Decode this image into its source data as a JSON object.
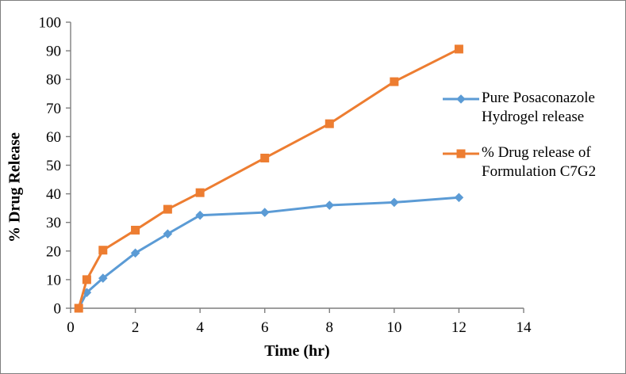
{
  "figure": {
    "y_axis_title": "% Drug Release",
    "x_axis_title": "Time (hr)"
  },
  "legend": {
    "items": [
      {
        "label": "Pure Posaconazole Hydrogel release",
        "color": "#5B9BD5",
        "marker": "diamond"
      },
      {
        "label": "% Drug release of Formulation C7G2",
        "color": "#ED7D31",
        "marker": "square"
      }
    ]
  },
  "chart_data": {
    "type": "line",
    "title": "",
    "xlabel": "Time (hr)",
    "ylabel": "% Drug Release",
    "x": [
      0.25,
      0.5,
      1,
      2,
      3,
      4,
      6,
      8,
      10,
      12
    ],
    "series": [
      {
        "name": "Pure Posaconazole Hydrogel release",
        "color": "#5B9BD5",
        "marker": "diamond",
        "values": [
          0,
          5.5,
          10.5,
          19.3,
          26.0,
          32.5,
          33.5,
          36.0,
          37.0,
          38.7
        ]
      },
      {
        "name": "% Drug release of Formulation C7G2",
        "color": "#ED7D31",
        "marker": "square",
        "values": [
          0,
          10.0,
          20.3,
          27.3,
          34.6,
          40.4,
          52.5,
          64.5,
          79.2,
          90.6
        ]
      }
    ],
    "xlim": [
      0,
      14
    ],
    "ylim": [
      0,
      100
    ],
    "x_ticks": [
      0,
      2,
      4,
      6,
      8,
      10,
      12,
      14
    ],
    "y_ticks": [
      0,
      10,
      20,
      30,
      40,
      50,
      60,
      70,
      80,
      90,
      100
    ],
    "grid": false,
    "legend_position": "right",
    "axis_color": "#7F7F7F"
  }
}
